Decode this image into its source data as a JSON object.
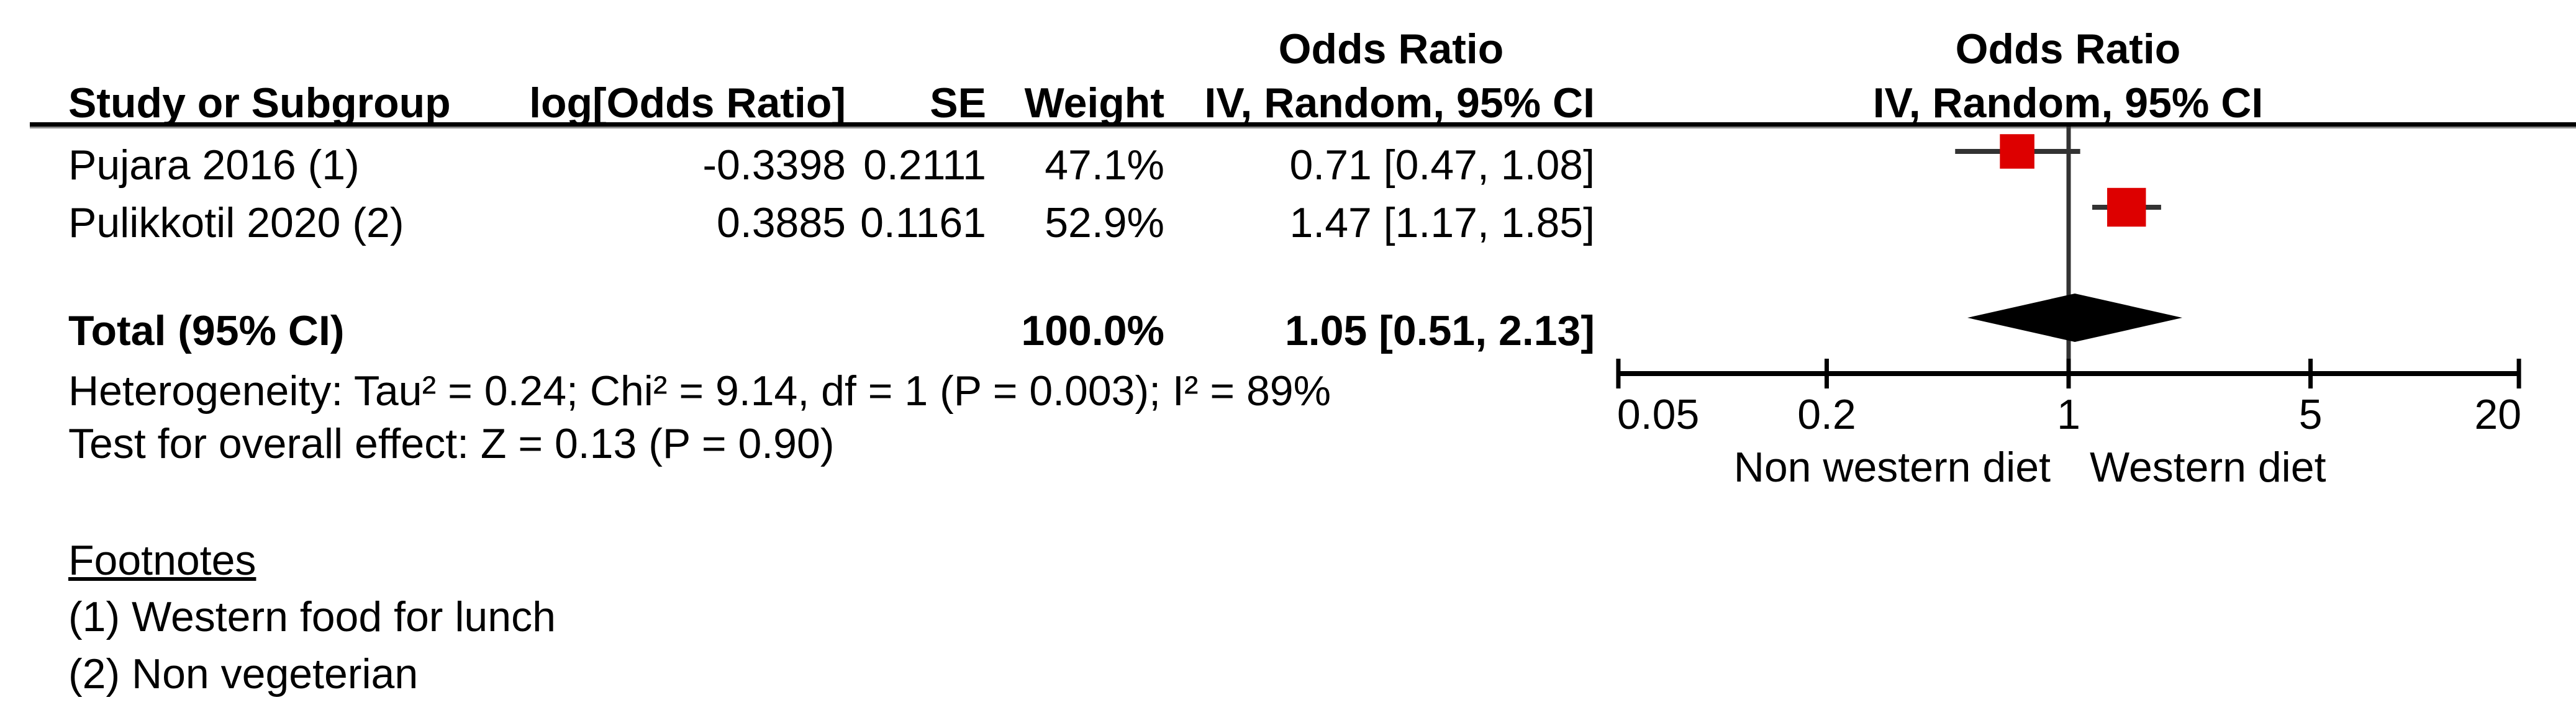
{
  "table": {
    "header_top": {
      "ci_col": "Odds Ratio",
      "plot_col": "Odds Ratio"
    },
    "header": {
      "study": "Study or Subgroup",
      "log_or": "log[Odds Ratio]",
      "se": "SE",
      "weight": "Weight",
      "ci": "IV, Random, 95% CI",
      "plot_ci": "IV, Random, 95% CI"
    },
    "rows": [
      {
        "study": "Pujara 2016 (1)",
        "log_or": "-0.3398",
        "se": "0.2111",
        "weight": "47.1%",
        "ci_text": "0.71 [0.47, 1.08]"
      },
      {
        "study": "Pulikkotil 2020 (2)",
        "log_or": "0.3885",
        "se": "0.1161",
        "weight": "52.9%",
        "ci_text": "1.47 [1.17, 1.85]"
      }
    ],
    "total": {
      "label": "Total (95% CI)",
      "weight": "100.0%",
      "ci_text": "1.05 [0.51, 2.13]"
    },
    "heterogeneity": "Heterogeneity: Tau² = 0.24; Chi² = 9.14, df = 1 (P = 0.003); I² = 89%",
    "overall_effect": "Test for overall effect: Z = 0.13 (P = 0.90)"
  },
  "footnotes": {
    "title": "Footnotes",
    "item1": "(1) Western food for lunch",
    "item2": "(2) Non vegeterian"
  },
  "chart_data": {
    "type": "forest",
    "scale": "log",
    "axis_ticks": [
      0.05,
      0.2,
      1,
      5,
      20
    ],
    "axis_tick_labels": [
      "0.05",
      "0.2",
      "1",
      "5",
      "20"
    ],
    "axis_range": [
      0.05,
      20
    ],
    "no_effect_value": 1,
    "xlabel_left": "Non western diet",
    "xlabel_right": "Western diet",
    "studies": [
      {
        "name": "Pujara 2016 (1)",
        "or": 0.71,
        "ci_low": 0.47,
        "ci_high": 1.08,
        "weight_pct": 47.1
      },
      {
        "name": "Pulikkotil 2020 (2)",
        "or": 1.47,
        "ci_low": 1.17,
        "ci_high": 1.85,
        "weight_pct": 52.9
      }
    ],
    "total": {
      "or": 1.05,
      "ci_low": 0.51,
      "ci_high": 2.13,
      "weight_pct": 100.0
    },
    "marker_color": "#DD0000",
    "ci_line_color": "#333333",
    "diamond_color": "#000000",
    "axis_color": "#000000"
  }
}
